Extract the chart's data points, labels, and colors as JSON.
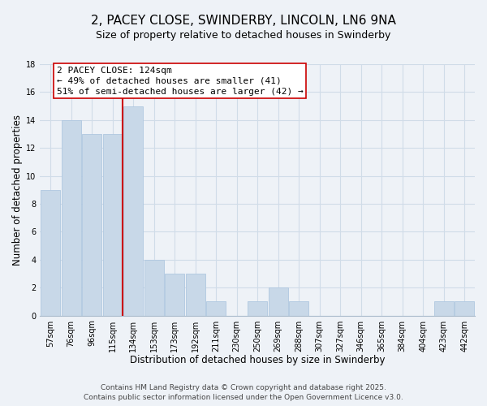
{
  "title": "2, PACEY CLOSE, SWINDERBY, LINCOLN, LN6 9NA",
  "subtitle": "Size of property relative to detached houses in Swinderby",
  "xlabel": "Distribution of detached houses by size in Swinderby",
  "ylabel": "Number of detached properties",
  "categories": [
    "57sqm",
    "76sqm",
    "96sqm",
    "115sqm",
    "134sqm",
    "153sqm",
    "173sqm",
    "192sqm",
    "211sqm",
    "230sqm",
    "250sqm",
    "269sqm",
    "288sqm",
    "307sqm",
    "327sqm",
    "346sqm",
    "365sqm",
    "384sqm",
    "404sqm",
    "423sqm",
    "442sqm"
  ],
  "values": [
    9,
    14,
    13,
    13,
    15,
    4,
    3,
    3,
    1,
    0,
    1,
    2,
    1,
    0,
    0,
    0,
    0,
    0,
    0,
    1,
    1
  ],
  "bar_color": "#c8d8e8",
  "bar_edge_color": "#b0c8e0",
  "reference_line_color": "#cc0000",
  "annotation_box_text": "2 PACEY CLOSE: 124sqm\n← 49% of detached houses are smaller (41)\n51% of semi-detached houses are larger (42) →",
  "ylim": [
    0,
    18
  ],
  "grid_color": "#d0dce8",
  "background_color": "#eef2f7",
  "footer_line1": "Contains HM Land Registry data © Crown copyright and database right 2025.",
  "footer_line2": "Contains public sector information licensed under the Open Government Licence v3.0.",
  "title_fontsize": 11,
  "subtitle_fontsize": 9,
  "xlabel_fontsize": 8.5,
  "ylabel_fontsize": 8.5,
  "tick_fontsize": 7,
  "annotation_fontsize": 8,
  "footer_fontsize": 6.5
}
